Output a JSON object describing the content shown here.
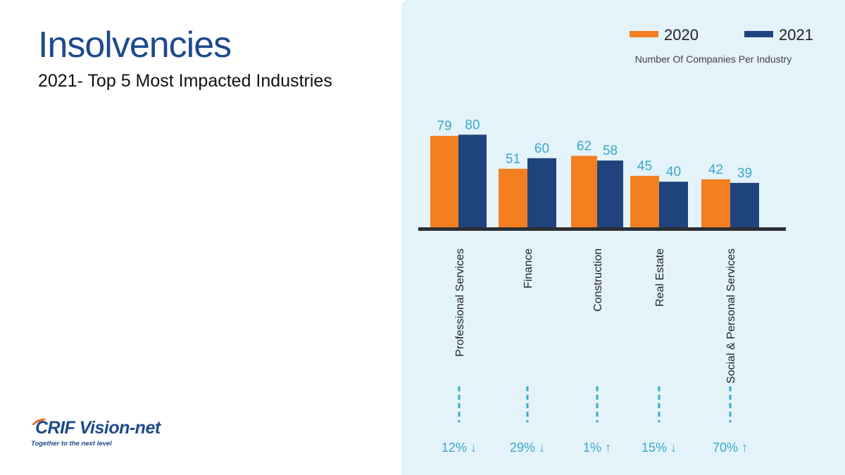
{
  "header": {
    "title": "Insolvencies",
    "subtitle": "2021- Top 5 Most Impacted Industries"
  },
  "logo": {
    "wordmark": "CRIF Vision-net",
    "tagline": "Together to the next level"
  },
  "colors": {
    "series_2020": "#f47f20",
    "series_2021": "#1f437d",
    "value_labels": "#3aa9cc",
    "panel_bg": "#e4f2f9",
    "title": "#1e4a8c"
  },
  "chart_data": {
    "type": "bar",
    "title": "",
    "subtitle": "Number Of Companies Per Industry",
    "xlabel": "",
    "ylabel": "",
    "ylim": [
      0,
      80
    ],
    "grid": false,
    "legend_position": "top-right",
    "categories": [
      "Professional Services",
      "Finance",
      "Construction",
      "Real Estate",
      "Social & Personal Services"
    ],
    "series": [
      {
        "name": "2020",
        "values": [
          79,
          51,
          62,
          45,
          42
        ]
      },
      {
        "name": "2021",
        "values": [
          80,
          60,
          58,
          40,
          39
        ]
      }
    ],
    "change_labels": [
      "12%",
      "29%",
      "1%",
      "15%",
      "70%"
    ],
    "change_direction": [
      "down",
      "down",
      "up",
      "down",
      "up"
    ]
  }
}
